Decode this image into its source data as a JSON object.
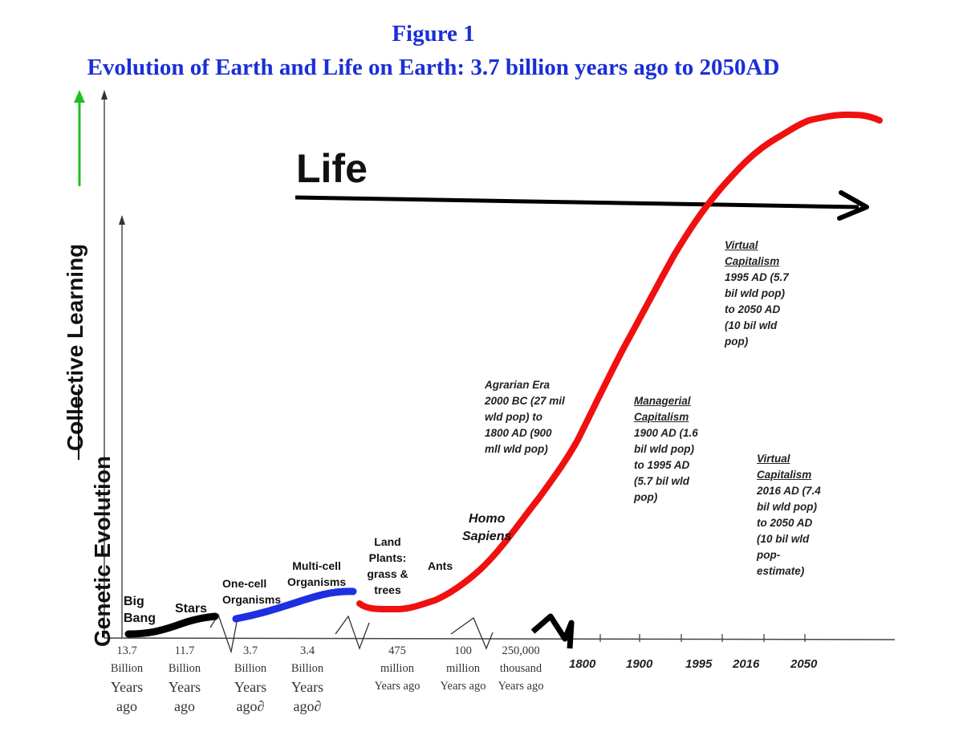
{
  "title": {
    "line1": "Figure 1",
    "line2": "Evolution of Earth and Life on Earth: 3.7 billion years ago to 2050AD"
  },
  "axes": {
    "y_outer": "Collective Learning",
    "y_inner": "Genetic Evolution"
  },
  "life_label": "Life",
  "stages": {
    "big_bang": "Big\nBang",
    "stars": "Stars",
    "one_cell": "One-cell\nOrganisms",
    "multi_cell": "Multi-cell\nOrganisms",
    "land_plants": "Land\nPlants:\ngrass &\ntrees",
    "ants": "Ants",
    "homo_sapiens": "Homo\nSapiens"
  },
  "annotations": {
    "agrarian": "Agrarian Era\n2000 BC (27 mil\nwld pop) to\n 1800 AD (900\n mll wld pop)",
    "managerial_title": "Managerial\nCapitalism",
    "managerial_body": "1900 AD (1.6\nbil wld pop)\nto 1995 AD\n(5.7 bil wld\npop)",
    "virtual1_title": "Virtual\nCapitalism",
    "virtual1_body": "1995 AD (5.7\nbil wld pop)\nto 2050 AD\n(10 bil wld\npop)",
    "virtual2_title": "Virtual\nCapitalism",
    "virtual2_body": "2016 AD (7.4\nbil wld pop)\nto 2050 AD\n(10 bil wld\npop-\nestimate)"
  },
  "x_labels": {
    "l1_small": "13.7\nBillion",
    "l1_large": "Years\nago",
    "l2_small": "11.7\nBillion",
    "l2_large": "Years\nago",
    "l3_small": "3.7\nBillion",
    "l3_large": "Years\nago∂",
    "l4_small": "3.4\nBillion",
    "l4_large": "Years\nago∂",
    "l5": "475\nmillion\nYears ago",
    "l6": "100\nmillion\nYears ago",
    "l7": "250,000\nthousand\nYears ago"
  },
  "years": [
    "1800",
    "1900",
    "1995",
    "2016",
    "2050"
  ],
  "colors": {
    "title": "#1a2fd6",
    "red_curve": "#f01010",
    "blue_curve": "#1d2fe0",
    "green_arrow": "#22c022",
    "black": "#000000"
  }
}
